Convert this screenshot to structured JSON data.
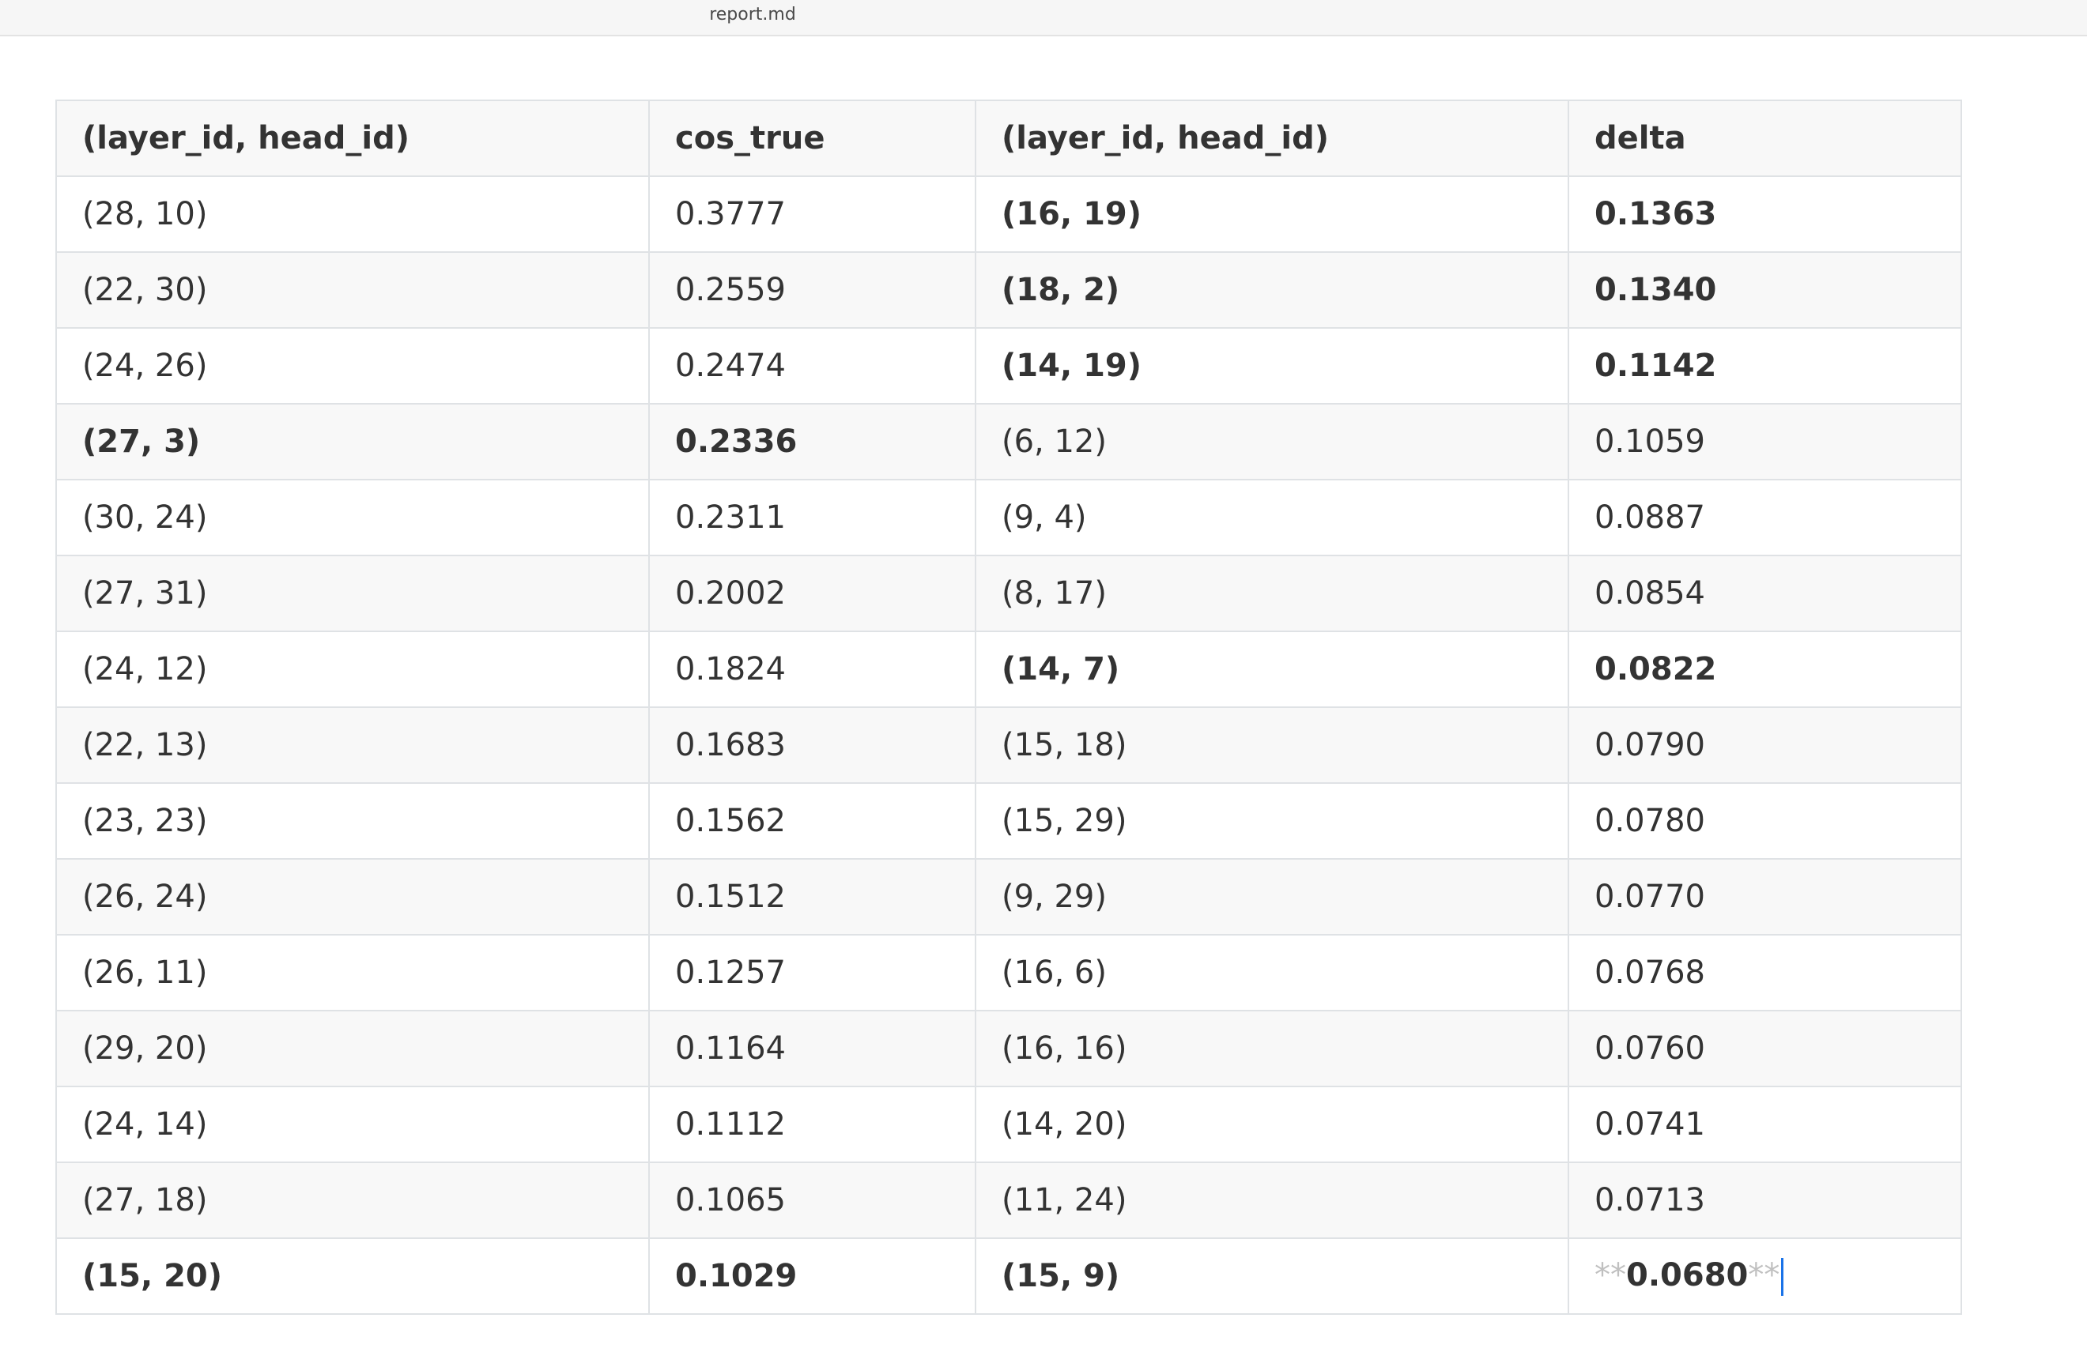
{
  "window": {
    "title": "report.md"
  },
  "table": {
    "headers": [
      "(layer_id, head_id)",
      "cos_true",
      "(layer_id, head_id)",
      "delta"
    ],
    "rows": [
      {
        "cells": [
          "(28, 10)",
          "0.3777",
          "(16, 19)",
          "0.1363"
        ],
        "bold": [
          false,
          false,
          true,
          true
        ]
      },
      {
        "cells": [
          "(22, 30)",
          "0.2559",
          "(18, 2)",
          "0.1340"
        ],
        "bold": [
          false,
          false,
          true,
          true
        ]
      },
      {
        "cells": [
          "(24, 26)",
          "0.2474",
          "(14, 19)",
          "0.1142"
        ],
        "bold": [
          false,
          false,
          true,
          true
        ]
      },
      {
        "cells": [
          "(27, 3)",
          "0.2336",
          "(6, 12)",
          "0.1059"
        ],
        "bold": [
          true,
          true,
          false,
          false
        ]
      },
      {
        "cells": [
          "(30, 24)",
          "0.2311",
          "(9, 4)",
          "0.0887"
        ],
        "bold": [
          false,
          false,
          false,
          false
        ]
      },
      {
        "cells": [
          "(27, 31)",
          "0.2002",
          "(8, 17)",
          "0.0854"
        ],
        "bold": [
          false,
          false,
          false,
          false
        ]
      },
      {
        "cells": [
          "(24, 12)",
          "0.1824",
          "(14, 7)",
          "0.0822"
        ],
        "bold": [
          false,
          false,
          true,
          true
        ]
      },
      {
        "cells": [
          "(22, 13)",
          "0.1683",
          "(15, 18)",
          "0.0790"
        ],
        "bold": [
          false,
          false,
          false,
          false
        ]
      },
      {
        "cells": [
          "(23, 23)",
          "0.1562",
          "(15, 29)",
          "0.0780"
        ],
        "bold": [
          false,
          false,
          false,
          false
        ]
      },
      {
        "cells": [
          "(26, 24)",
          "0.1512",
          "(9, 29)",
          "0.0770"
        ],
        "bold": [
          false,
          false,
          false,
          false
        ]
      },
      {
        "cells": [
          "(26, 11)",
          "0.1257",
          "(16, 6)",
          "0.0768"
        ],
        "bold": [
          false,
          false,
          false,
          false
        ]
      },
      {
        "cells": [
          "(29, 20)",
          "0.1164",
          "(16, 16)",
          "0.0760"
        ],
        "bold": [
          false,
          false,
          false,
          false
        ]
      },
      {
        "cells": [
          "(24, 14)",
          "0.1112",
          "(14, 20)",
          "0.0741"
        ],
        "bold": [
          false,
          false,
          false,
          false
        ]
      },
      {
        "cells": [
          "(27, 18)",
          "0.1065",
          "(11, 24)",
          "0.0713"
        ],
        "bold": [
          false,
          false,
          false,
          false
        ]
      },
      {
        "cells": [
          "(15, 20)",
          "0.1029",
          "(15, 9)",
          "0.0680"
        ],
        "bold": [
          true,
          true,
          true,
          true
        ]
      }
    ],
    "editing_cell": {
      "row": 14,
      "col": 3,
      "marker_open": "**",
      "value": "0.0680",
      "marker_close": "**"
    }
  },
  "colors": {
    "border": "#dfe2e5",
    "stripe": "#f8f8f8",
    "text": "#333333",
    "markdown_marker": "#c0c0c0",
    "caret": "#1a73e8"
  }
}
